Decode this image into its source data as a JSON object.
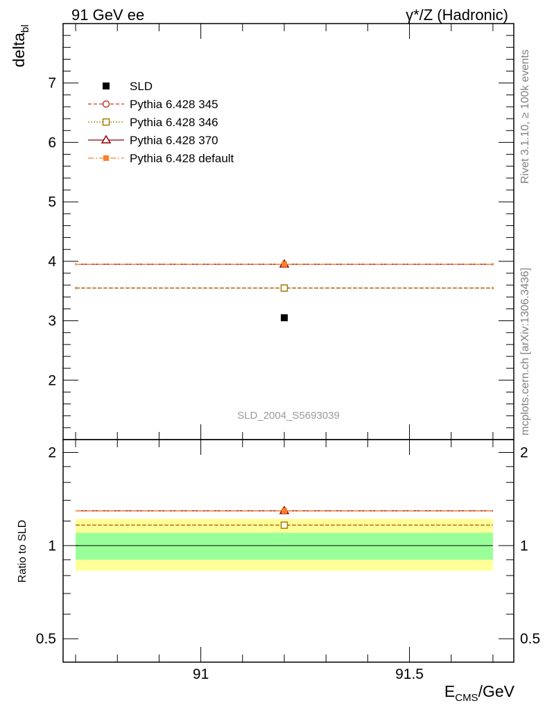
{
  "header": {
    "left": "91 GeV ee",
    "right": "γ*/Z (Hadronic)"
  },
  "side_labels": {
    "rivet": "Rivet 3.1.10, ≥ 100k events",
    "mcplots": "mcplots.cern.ch [arXiv:1306.3436]"
  },
  "chart_data": {
    "type": "scatter",
    "title": "",
    "watermark": "SLD_2004_S5693039",
    "ylabel": "delta",
    "ylabel_sub": "bl",
    "xlabel": "E",
    "xlabel_sub": "CMS",
    "xlabel_unit": "/GeV",
    "xlim": [
      90.67,
      91.75
    ],
    "ylim": [
      1.0,
      8.0
    ],
    "x_ticks": [
      90.7,
      90.8,
      90.9,
      91.0,
      91.1,
      91.2,
      91.3,
      91.4,
      91.5,
      91.6,
      91.7
    ],
    "x_tick_labels": [
      "91",
      "91.5"
    ],
    "x_tick_label_values": [
      91.0,
      91.5
    ],
    "y_tick_labels": [
      "2",
      "3",
      "4",
      "5",
      "6",
      "7"
    ],
    "y_tick_label_values": [
      2,
      3,
      4,
      5,
      6,
      7
    ],
    "legend_position": "top-left",
    "data": {
      "name": "SLD",
      "x": 91.2,
      "y": 3.05,
      "color": "#000000"
    },
    "series": [
      {
        "name": "Pythia 6.428 345",
        "x": [
          90.7,
          91.2,
          91.7
        ],
        "y": 3.55,
        "color": "#c0392b",
        "marker": "circle-open",
        "dash": "5,3",
        "ratio": 1.164
      },
      {
        "name": "Pythia 6.428 346",
        "x": [
          90.7,
          91.2,
          91.7
        ],
        "y": 3.55,
        "color": "#a67c00",
        "marker": "square-open",
        "dash": "2,2",
        "ratio": 1.164
      },
      {
        "name": "Pythia 6.428 370",
        "x": [
          90.7,
          91.2,
          91.7
        ],
        "y": 3.95,
        "color": "#8b0000",
        "marker": "triangle-open",
        "dash": "",
        "ratio": 1.295
      },
      {
        "name": "Pythia 6.428 default",
        "x": [
          90.7,
          91.2,
          91.7
        ],
        "y": 3.95,
        "color": "#ff7f2a",
        "marker": "square-filled",
        "dash": "8,3,2,3",
        "ratio": 1.295
      }
    ],
    "ratio": {
      "ylabel": "Ratio to SLD",
      "ylim": [
        0.42,
        2.2
      ],
      "log": true,
      "y_tick_labels": [
        "0.5",
        "1",
        "2"
      ],
      "y_tick_label_values": [
        0.5,
        1,
        2
      ],
      "band_inner": [
        0.9,
        1.1
      ],
      "band_outer": [
        0.83,
        1.22
      ],
      "band_inner_color": "#99ff99",
      "band_outer_color": "#ffff99"
    }
  }
}
